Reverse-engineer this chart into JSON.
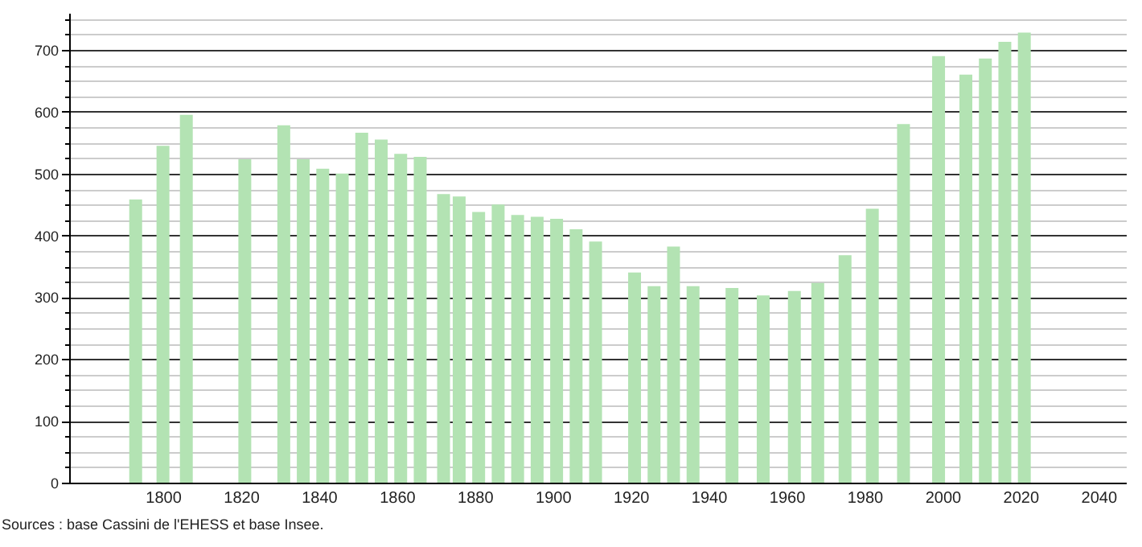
{
  "chart_data": {
    "type": "bar",
    "x": [
      1793,
      1800,
      1806,
      1821,
      1831,
      1836,
      1841,
      1846,
      1851,
      1856,
      1861,
      1866,
      1872,
      1876,
      1881,
      1886,
      1891,
      1896,
      1901,
      1906,
      1911,
      1921,
      1926,
      1931,
      1936,
      1946,
      1954,
      1962,
      1968,
      1975,
      1982,
      1990,
      1999,
      2006,
      2011,
      2016,
      2021
    ],
    "values": [
      458,
      545,
      595,
      523,
      578,
      523,
      508,
      500,
      566,
      555,
      532,
      527,
      467,
      463,
      438,
      450,
      433,
      430,
      427,
      410,
      390,
      340,
      318,
      382,
      318,
      315,
      303,
      310,
      323,
      368,
      443,
      580,
      690,
      660,
      686,
      713,
      728
    ],
    "color": "#b3e3b3",
    "xlim": [
      1778,
      2045
    ],
    "xticks": [
      1800,
      1820,
      1840,
      1860,
      1880,
      1900,
      1920,
      1940,
      1960,
      1980,
      2000,
      2020,
      2040
    ],
    "ylim": [
      0,
      760
    ],
    "yticks": [
      0,
      {
        "value": 25,
        "label": null
      },
      {
        "value": 50,
        "label": null
      },
      {
        "value": 75,
        "label": null
      },
      100,
      {
        "value": 125,
        "label": null
      },
      {
        "value": 150,
        "label": null
      },
      {
        "value": 175,
        "label": null
      },
      200,
      {
        "value": 225,
        "label": null
      },
      {
        "value": 250,
        "label": null
      },
      {
        "value": 275,
        "label": null
      },
      300,
      {
        "value": 325,
        "label": null
      },
      {
        "value": 350,
        "label": null
      },
      {
        "value": 375,
        "label": null
      },
      400,
      {
        "value": 425,
        "label": null
      },
      {
        "value": 450,
        "label": null
      },
      {
        "value": 475,
        "label": null
      },
      500,
      {
        "value": 525,
        "label": null
      },
      {
        "value": 550,
        "label": null
      },
      {
        "value": 575,
        "label": null
      },
      600,
      {
        "value": 625,
        "label": null
      },
      {
        "value": 650,
        "label": null
      },
      {
        "value": 675,
        "label": null
      },
      700,
      {
        "value": 725,
        "label": null
      },
      {
        "value": 750,
        "label": null
      }
    ],
    "grid": "y",
    "annotations": [
      "Sources : base Cassini de l'EHESS et base Insee."
    ]
  }
}
